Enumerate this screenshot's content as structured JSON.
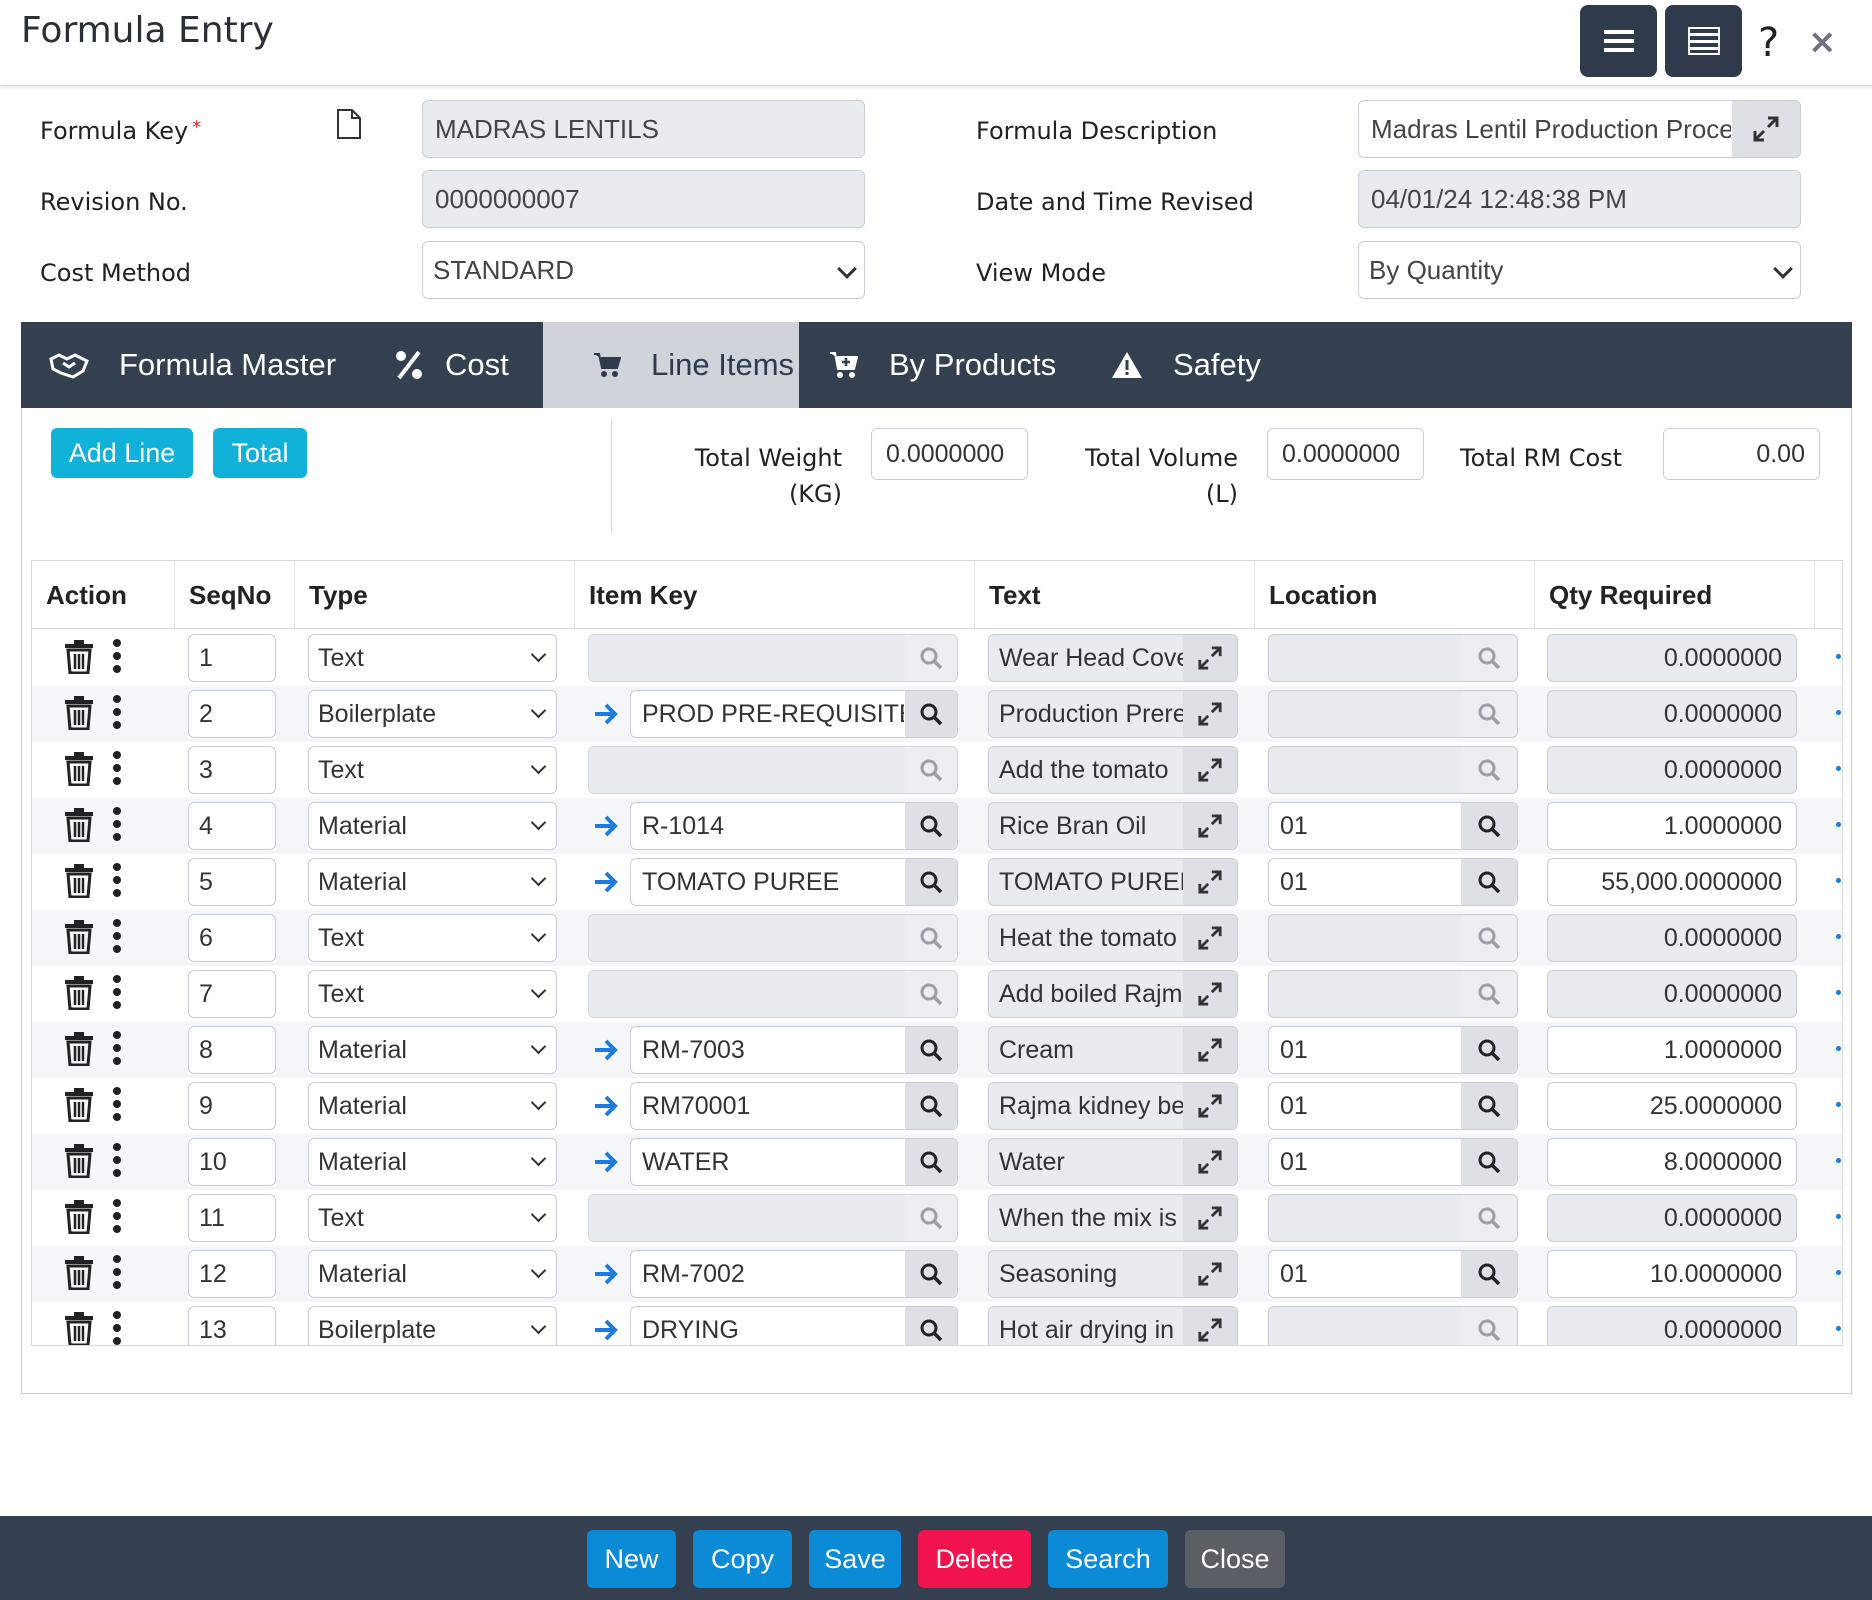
{
  "window": {
    "title": "Formula Entry",
    "help_label": "?",
    "close_label": "×"
  },
  "form": {
    "formula_key": {
      "label": "Formula Key",
      "required_mark": "*",
      "value": "MADRAS LENTILS"
    },
    "revision_no": {
      "label": "Revision No.",
      "value": "0000000007"
    },
    "cost_method": {
      "label": "Cost Method",
      "value": "STANDARD"
    },
    "formula_description": {
      "label": "Formula Description",
      "value": "Madras Lentil Production Process"
    },
    "date_revised": {
      "label": "Date and Time Revised",
      "value": "04/01/24 12:48:38 PM"
    },
    "view_mode": {
      "label": "View Mode",
      "value": "By Quantity"
    }
  },
  "tabs": [
    {
      "label": "Formula Master",
      "icon": "handshake-icon"
    },
    {
      "label": "Cost",
      "icon": "percent-icon"
    },
    {
      "label": "Line Items",
      "icon": "cart-icon",
      "active": true
    },
    {
      "label": "By Products",
      "icon": "cart-plus-icon"
    },
    {
      "label": "Safety",
      "icon": "warning-icon"
    }
  ],
  "toolbar": {
    "add_line": "Add Line",
    "total": "Total"
  },
  "totals": {
    "weight_label_1": "Total Weight",
    "weight_label_2": "(KG)",
    "weight_value": "0.0000000",
    "volume_label_1": "Total Volume",
    "volume_label_2": "(L)",
    "volume_value": "0.0000000",
    "rm_cost_label": "Total RM Cost",
    "rm_cost_value": "0.00"
  },
  "grid": {
    "columns": [
      "Action",
      "SeqNo",
      "Type",
      "Item Key",
      "Text",
      "Location",
      "Qty Required"
    ],
    "rows": [
      {
        "seq": "1",
        "type": "Text",
        "item": "",
        "text": "Wear Head Cover",
        "location": "",
        "qty": "0.0000000"
      },
      {
        "seq": "2",
        "type": "Boilerplate",
        "item": "PROD PRE-REQUISITE",
        "text": "Production Prerequisite",
        "location": "",
        "qty": "0.0000000"
      },
      {
        "seq": "3",
        "type": "Text",
        "item": "",
        "text": "Add the tomato",
        "location": "",
        "qty": "0.0000000"
      },
      {
        "seq": "4",
        "type": "Material",
        "item": "R-1014",
        "text": "Rice Bran Oil",
        "location": "01",
        "qty": "1.0000000"
      },
      {
        "seq": "5",
        "type": "Material",
        "item": "TOMATO PUREE",
        "text": "TOMATO PUREE",
        "location": "01",
        "qty": "55,000.0000000"
      },
      {
        "seq": "6",
        "type": "Text",
        "item": "",
        "text": "Heat the tomato",
        "location": "",
        "qty": "0.0000000"
      },
      {
        "seq": "7",
        "type": "Text",
        "item": "",
        "text": "Add boiled Rajma",
        "location": "",
        "qty": "0.0000000"
      },
      {
        "seq": "8",
        "type": "Material",
        "item": "RM-7003",
        "text": "Cream",
        "location": "01",
        "qty": "1.0000000"
      },
      {
        "seq": "9",
        "type": "Material",
        "item": "RM70001",
        "text": "Rajma kidney beans",
        "location": "01",
        "qty": "25.0000000"
      },
      {
        "seq": "10",
        "type": "Material",
        "item": "WATER",
        "text": "Water",
        "location": "01",
        "qty": "8.0000000"
      },
      {
        "seq": "11",
        "type": "Text",
        "item": "",
        "text": "When the mix is",
        "location": "",
        "qty": "0.0000000"
      },
      {
        "seq": "12",
        "type": "Material",
        "item": "RM-7002",
        "text": "Seasoning",
        "location": "01",
        "qty": "10.0000000"
      },
      {
        "seq": "13",
        "type": "Boilerplate",
        "item": "DRYING",
        "text": "Hot air drying in",
        "location": "",
        "qty": "0.0000000"
      }
    ]
  },
  "footer": {
    "new": "New",
    "copy": "Copy",
    "save": "Save",
    "delete": "Delete",
    "search": "Search",
    "close": "Close"
  },
  "colors": {
    "header_dark": "#34404f",
    "accent_cyan": "#10b2d9",
    "save_blue": "#0b8ad6",
    "delete_red": "#f0134d",
    "close_gray": "#5a5f66",
    "arrow_blue": "#1f7ae0"
  }
}
